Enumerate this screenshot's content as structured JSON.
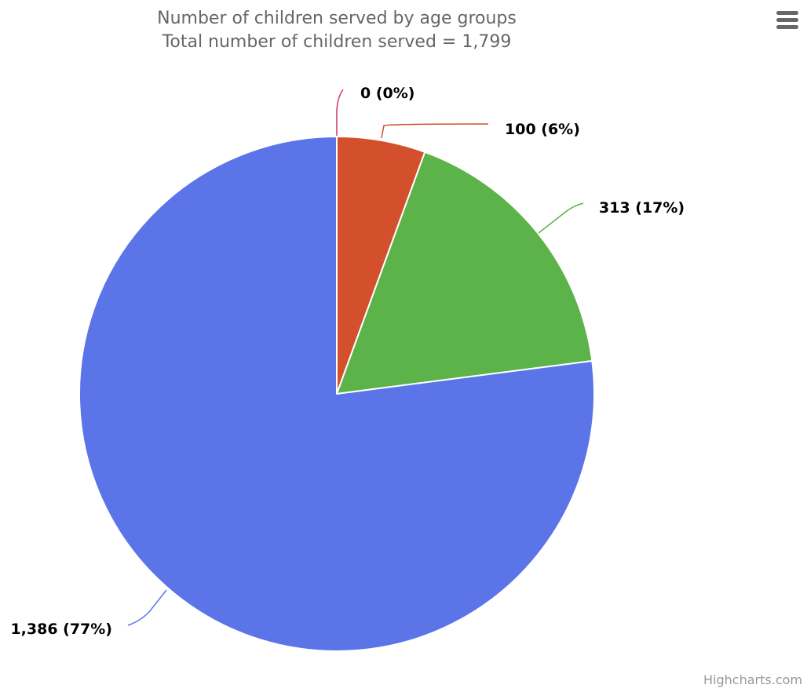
{
  "chart_data": {
    "type": "pie",
    "title": "Number of children served by age groups",
    "subtitle": "Total number of children served = 1,799",
    "slices": [
      {
        "value": 0,
        "percent": 0,
        "label": "0 (0%)",
        "color": "#d6336c"
      },
      {
        "value": 100,
        "percent": 6,
        "label": "100 (6%)",
        "color": "#d4502c"
      },
      {
        "value": 313,
        "percent": 17,
        "label": "313 (17%)",
        "color": "#5bb349"
      },
      {
        "value": 1386,
        "percent": 77,
        "label": "1,386 (77%)",
        "color": "#5b74e8"
      }
    ],
    "start_angle": "12 o'clock, clockwise",
    "legend": "none"
  },
  "menu": {
    "icon": "hamburger-menu-icon",
    "color": "#666666"
  },
  "credits": {
    "text": "Highcharts.com"
  }
}
